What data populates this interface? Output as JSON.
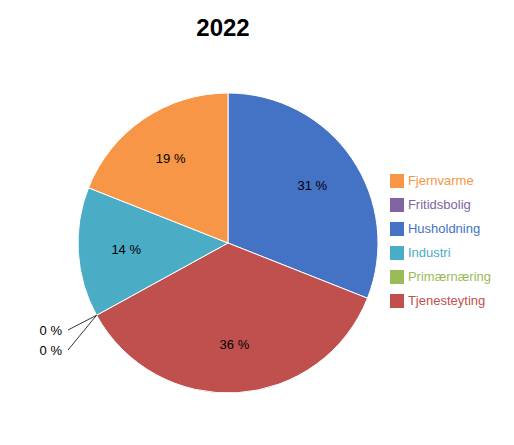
{
  "chart_data": {
    "type": "pie",
    "title": "2022",
    "categories": [
      "Husholdning",
      "Tjenesteyting",
      "Primærnæring",
      "Fritidsbolig",
      "Industri",
      "Fjernvarme"
    ],
    "values": [
      31,
      36,
      0,
      0,
      14,
      19
    ],
    "value_labels": [
      "31 %",
      "36 %",
      "0 %",
      "0 %",
      "14 %",
      "19 %"
    ],
    "colors": [
      "#4472C4",
      "#C0504D",
      "#9BBB59",
      "#8064A2",
      "#4BACC6",
      "#F79646"
    ],
    "data_labels": true,
    "legend": "right"
  }
}
